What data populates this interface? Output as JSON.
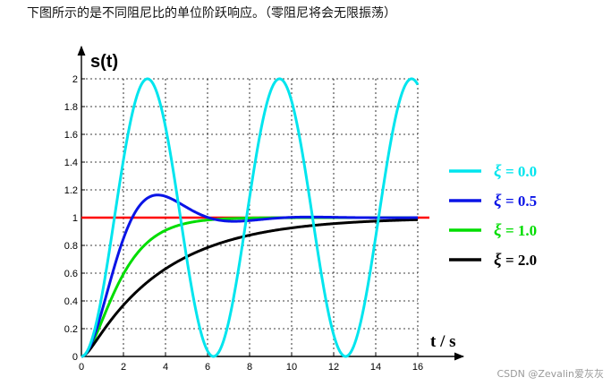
{
  "caption": "下图所示的是不同阻尼比的单位阶跃响应。（零阻尼将会无限振荡）",
  "watermark": "CSDN @Zevalin爱灰灰",
  "chart_data": {
    "type": "line",
    "ylabel": "s(t)",
    "xlabel": "t / s",
    "xlim": [
      0,
      16
    ],
    "ylim": [
      0,
      2
    ],
    "xticks": [
      0,
      2,
      4,
      6,
      8,
      10,
      12,
      14,
      16
    ],
    "yticks": [
      0,
      0.2,
      0.4,
      0.6,
      0.8,
      1,
      1.2,
      1.4,
      1.6,
      1.8,
      2
    ],
    "ytick_labels": [
      "0",
      "0.2",
      "0.4",
      "0.6",
      "0.8",
      "1",
      "1.2",
      "1.4",
      "1.6",
      "1.8",
      "2"
    ],
    "grid": true,
    "legend_position": "right",
    "reference_line": {
      "y": 1,
      "color": "#ff0000"
    },
    "series": [
      {
        "xi_symbol": "ξ",
        "value_label": "= 0.0",
        "color": "#00e5ee",
        "zeta": 0.0,
        "peak": 2.0,
        "peak_times": [
          3.1,
          9.4,
          15.7
        ],
        "zero_times": [
          0,
          6.3,
          12.6
        ]
      },
      {
        "xi_symbol": "ξ",
        "value_label": "= 0.5",
        "color": "#0a14e6",
        "zeta": 0.5,
        "peak": 1.16,
        "peak_time": 3.6
      },
      {
        "xi_symbol": "ξ",
        "value_label": "= 1.0",
        "color": "#00dd00",
        "zeta": 1.0,
        "value_at_4": 0.91,
        "value_at_8": 1.0
      },
      {
        "xi_symbol": "ξ",
        "value_label": "= 2.0",
        "color": "#000000",
        "zeta": 2.0,
        "value_at_4": 0.67,
        "value_at_8": 0.88,
        "value_at_16": 0.99
      }
    ]
  }
}
